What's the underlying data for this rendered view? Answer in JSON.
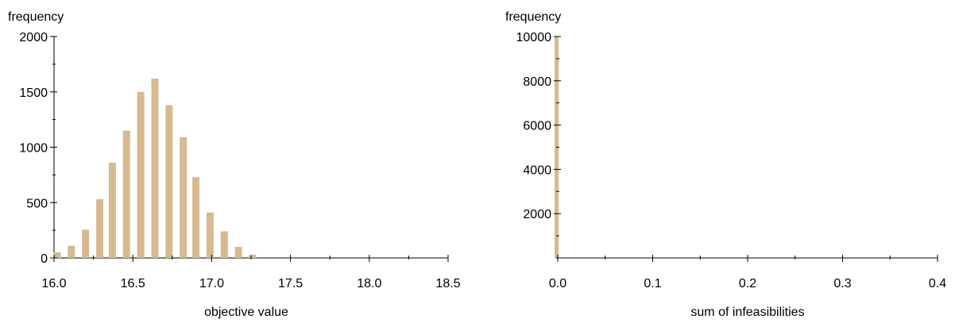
{
  "colors": {
    "bar": "#d7b98f",
    "axis": "#000000",
    "text": "#000000"
  },
  "chart_data": [
    {
      "type": "bar",
      "title": "",
      "xlabel": "objective value",
      "ylabel": "frequency",
      "xlim": [
        16.0,
        18.5
      ],
      "ylim": [
        0,
        2000
      ],
      "grid": false,
      "x_ticks": [
        16.0,
        16.5,
        17.0,
        17.5,
        18.0,
        18.5
      ],
      "x_tick_labels": [
        "16.0",
        "16.5",
        "17.0",
        "17.5",
        "18.0",
        "18.5"
      ],
      "x_minor_step": 0.25,
      "y_ticks": [
        0,
        500,
        1000,
        1500,
        2000
      ],
      "y_tick_labels": [
        "0",
        "500",
        "1000",
        "1500",
        "2000"
      ],
      "y_minor_step": 250,
      "bin_width": 0.088,
      "bar_fraction": 0.55,
      "x": [
        16.02,
        16.11,
        16.2,
        16.29,
        16.37,
        16.46,
        16.55,
        16.64,
        16.73,
        16.82,
        16.9,
        16.99,
        17.08,
        17.17,
        17.26
      ],
      "values": [
        50,
        110,
        255,
        530,
        860,
        1150,
        1500,
        1620,
        1380,
        1090,
        730,
        410,
        240,
        100,
        30
      ]
    },
    {
      "type": "bar",
      "title": "",
      "xlabel": "sum of infeasibilities",
      "ylabel": "frequency",
      "xlim": [
        0.0,
        0.4
      ],
      "ylim": [
        0,
        10000
      ],
      "grid": false,
      "x_ticks": [
        0.0,
        0.1,
        0.2,
        0.3,
        0.4
      ],
      "x_tick_labels": [
        "0.0",
        "0.1",
        "0.2",
        "0.3",
        "0.4"
      ],
      "x_minor_step": 0.05,
      "y_ticks": [
        2000,
        4000,
        6000,
        8000,
        10000
      ],
      "y_tick_labels": [
        "2000",
        "4000",
        "6000",
        "8000",
        "10000"
      ],
      "y_minor_step": 1000,
      "x": [
        0.0
      ],
      "values": [
        10000
      ]
    }
  ]
}
